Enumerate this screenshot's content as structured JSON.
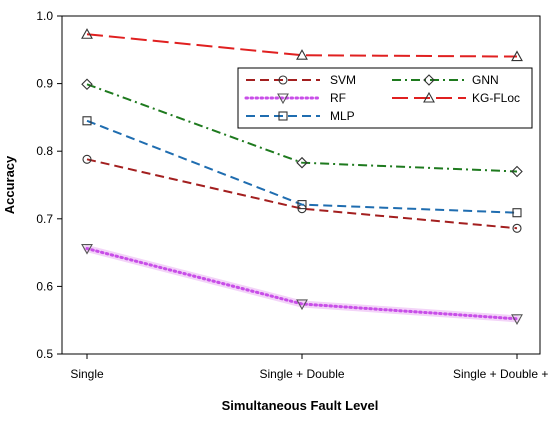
{
  "chart_data": {
    "type": "line",
    "title": "",
    "xlabel": "Simultaneous Fault Level",
    "ylabel": "Accuracy",
    "categories": [
      "Single",
      "Single + Double",
      "Single + Double + Triple"
    ],
    "ylim": [
      0.5,
      1.0
    ],
    "yticks": [
      "0.5",
      "0.6",
      "0.7",
      "0.8",
      "0.9",
      "1.0"
    ],
    "grid": false,
    "legend_position": "top-right",
    "series": [
      {
        "name": "SVM",
        "values": [
          0.788,
          0.715,
          0.686
        ],
        "color": "#a31f1f",
        "dash": "dashed",
        "marker": "circle"
      },
      {
        "name": "RF",
        "values": [
          0.656,
          0.574,
          0.552
        ],
        "color": "#c84ee8",
        "dash": "dotted",
        "marker": "triangle-down"
      },
      {
        "name": "MLP",
        "values": [
          0.845,
          0.721,
          0.709
        ],
        "color": "#1f6db0",
        "dash": "dashed",
        "marker": "square"
      },
      {
        "name": "GNN",
        "values": [
          0.899,
          0.783,
          0.77
        ],
        "color": "#1e7a1e",
        "dash": "dash-dot",
        "marker": "diamond"
      },
      {
        "name": "KG-FLoc",
        "values": [
          0.973,
          0.942,
          0.94
        ],
        "color": "#e02020",
        "dash": "long-dash",
        "marker": "triangle-up"
      }
    ],
    "legend_order": [
      "SVM",
      "GNN",
      "RF",
      "KG-FLoc",
      "MLP"
    ]
  }
}
